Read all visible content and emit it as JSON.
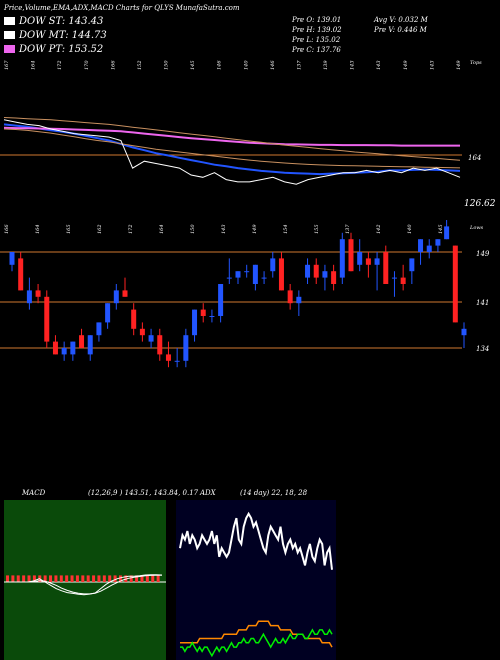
{
  "header": {
    "title": "Price,Volume,EMA,ADX,MACD Charts for QLYS MunafaSutra.com",
    "ohlc": [
      {
        "label": "Pre O: 139.01",
        "col": 0
      },
      {
        "label": "Pre H: 139.02",
        "col": 0
      },
      {
        "label": "Pre L: 135.02",
        "col": 0
      },
      {
        "label": "Pre C: 137.76",
        "col": 0
      },
      {
        "label": "Avg V: 0.032 M",
        "col": 1
      },
      {
        "label": "Pre V: 0.446 M",
        "col": 1
      }
    ]
  },
  "legend": [
    {
      "label": "DOW ST: 143.43",
      "color": "#ffffff"
    },
    {
      "label": "DOW MT: 144.73",
      "color": "#ffffff"
    },
    {
      "label": "DOW PT: 153.52",
      "color": "#ee66ee"
    }
  ],
  "chart_data": [
    {
      "type": "line",
      "name": "ema-panel",
      "top_tag": "Tops",
      "top_labels": [
        "167",
        "164",
        "172",
        "170",
        "166",
        "152",
        "150",
        "145",
        "146",
        "140",
        "146",
        "137",
        "139",
        "143",
        "143",
        "149",
        "143",
        "149"
      ],
      "price_tags": [
        "164",
        "126.62"
      ],
      "series": [
        {
          "color": "#2255ff",
          "values": [
            162,
            161.5,
            161,
            160.2,
            159.5,
            158.8,
            158,
            157,
            156,
            155,
            153.5,
            152,
            150.8,
            149.5,
            148.5,
            147.5,
            146.5,
            145.5,
            144.5,
            143.8,
            143,
            142.4,
            141.8,
            141.4,
            141,
            140.8,
            140.6,
            140.4,
            140.6,
            140.8,
            141,
            141.2,
            141.5,
            142,
            142,
            142.2,
            142.4,
            142.2,
            142,
            141.8
          ]
        },
        {
          "color": "#ee66ee",
          "values": [
            160.5,
            160.4,
            160.3,
            160.2,
            160.1,
            160,
            159.8,
            159.6,
            159.4,
            159.2,
            159,
            158.5,
            158,
            157.5,
            157,
            156.5,
            156,
            155.6,
            155.2,
            154.8,
            154.4,
            154,
            153.8,
            153.6,
            153.4,
            153.3,
            153.2,
            153.1,
            153.1,
            153,
            153,
            153,
            152.9,
            152.9,
            152.8,
            152.8,
            152.8,
            152.8,
            152.8,
            152.8
          ]
        },
        {
          "color": "#c89060",
          "values": [
            165,
            164.8,
            164.5,
            164.2,
            164,
            163.6,
            163.2,
            162.8,
            162.4,
            162,
            161.4,
            160.8,
            160.2,
            159.6,
            159,
            158.4,
            157.8,
            157.2,
            156.6,
            156,
            155.4,
            154.8,
            154.2,
            153.6,
            153,
            152.5,
            152,
            151.5,
            151,
            150.5,
            150,
            149.6,
            149.2,
            148.8,
            148.4,
            148,
            147.6,
            147.2,
            146.8,
            146.4
          ]
        },
        {
          "color": "#c89060",
          "values": [
            160,
            159.8,
            159.4,
            158.8,
            158.2,
            157.4,
            156.6,
            155.8,
            155,
            154.4,
            153.6,
            152.8,
            152,
            151.2,
            150.6,
            150,
            149.4,
            148.8,
            148.2,
            147.6,
            147,
            146.5,
            146,
            145.6,
            145.2,
            144.9,
            144.6,
            144.4,
            144.2,
            144.1,
            144,
            143.9,
            143.8,
            143.7,
            143.6,
            143.5,
            143.4,
            143.3,
            143.2,
            143.1
          ]
        },
        {
          "color": "#ffffff",
          "values": [
            164,
            163,
            162,
            161.5,
            160,
            159,
            158,
            157.5,
            157,
            156.5,
            155,
            143,
            146,
            145,
            144,
            143,
            140,
            139,
            141,
            138,
            137,
            137,
            138,
            139,
            137,
            136,
            138,
            139,
            140,
            141,
            141,
            142,
            141,
            142,
            141,
            143,
            142,
            143,
            141,
            139
          ]
        }
      ]
    },
    {
      "type": "candlestick",
      "name": "price-panel",
      "top_tag": "Lows",
      "top_labels": [
        "166",
        "164",
        "165",
        "162",
        "172",
        "164",
        "150",
        "143",
        "149",
        "154",
        "155",
        "137",
        "142",
        "140",
        "145"
      ],
      "price_tags": [
        "149",
        "141",
        "134"
      ],
      "ylim": [
        130,
        154
      ],
      "candles": [
        {
          "o": 147,
          "h": 149,
          "l": 146,
          "c": 149
        },
        {
          "o": 148,
          "h": 149,
          "l": 143,
          "c": 143
        },
        {
          "o": 141,
          "h": 145,
          "l": 140,
          "c": 143
        },
        {
          "o": 143,
          "h": 144,
          "l": 141,
          "c": 142
        },
        {
          "o": 142,
          "h": 143,
          "l": 134,
          "c": 135
        },
        {
          "o": 135,
          "h": 136,
          "l": 133,
          "c": 133
        },
        {
          "o": 133,
          "h": 135,
          "l": 132,
          "c": 134
        },
        {
          "o": 133,
          "h": 135,
          "l": 132,
          "c": 135
        },
        {
          "o": 136,
          "h": 137,
          "l": 134,
          "c": 134
        },
        {
          "o": 133,
          "h": 136,
          "l": 132,
          "c": 136
        },
        {
          "o": 136,
          "h": 138,
          "l": 135,
          "c": 138
        },
        {
          "o": 138,
          "h": 141,
          "l": 137,
          "c": 141
        },
        {
          "o": 141,
          "h": 144,
          "l": 140,
          "c": 143
        },
        {
          "o": 143,
          "h": 145,
          "l": 142,
          "c": 142
        },
        {
          "o": 140,
          "h": 141,
          "l": 136,
          "c": 137
        },
        {
          "o": 137,
          "h": 138,
          "l": 135,
          "c": 136
        },
        {
          "o": 135,
          "h": 137,
          "l": 134,
          "c": 136
        },
        {
          "o": 136,
          "h": 137,
          "l": 132,
          "c": 133
        },
        {
          "o": 133,
          "h": 135,
          "l": 131,
          "c": 132
        },
        {
          "o": 132,
          "h": 134,
          "l": 131,
          "c": 132
        },
        {
          "o": 132,
          "h": 137,
          "l": 131,
          "c": 136
        },
        {
          "o": 136,
          "h": 140,
          "l": 135,
          "c": 140
        },
        {
          "o": 140,
          "h": 141,
          "l": 138,
          "c": 139
        },
        {
          "o": 139,
          "h": 140,
          "l": 138,
          "c": 139
        },
        {
          "o": 139,
          "h": 144,
          "l": 138,
          "c": 144
        },
        {
          "o": 145,
          "h": 148,
          "l": 144,
          "c": 145
        },
        {
          "o": 145,
          "h": 146,
          "l": 144,
          "c": 146
        },
        {
          "o": 146,
          "h": 147,
          "l": 145,
          "c": 146
        },
        {
          "o": 144,
          "h": 147,
          "l": 143,
          "c": 147
        },
        {
          "o": 145,
          "h": 146,
          "l": 144,
          "c": 145
        },
        {
          "o": 146,
          "h": 149,
          "l": 145,
          "c": 148
        },
        {
          "o": 148,
          "h": 149,
          "l": 143,
          "c": 143
        },
        {
          "o": 143,
          "h": 144,
          "l": 140,
          "c": 141
        },
        {
          "o": 141,
          "h": 143,
          "l": 139,
          "c": 142
        },
        {
          "o": 145,
          "h": 148,
          "l": 144,
          "c": 147
        },
        {
          "o": 147,
          "h": 148,
          "l": 144,
          "c": 145
        },
        {
          "o": 145,
          "h": 147,
          "l": 143,
          "c": 146
        },
        {
          "o": 146,
          "h": 147,
          "l": 143,
          "c": 144
        },
        {
          "o": 145,
          "h": 152,
          "l": 144,
          "c": 151
        },
        {
          "o": 151,
          "h": 152,
          "l": 146,
          "c": 146
        },
        {
          "o": 147,
          "h": 151,
          "l": 146,
          "c": 149
        },
        {
          "o": 148,
          "h": 149,
          "l": 145,
          "c": 147
        },
        {
          "o": 147,
          "h": 149,
          "l": 143,
          "c": 148
        },
        {
          "o": 149,
          "h": 150,
          "l": 144,
          "c": 144
        },
        {
          "o": 145,
          "h": 146,
          "l": 142,
          "c": 145
        },
        {
          "o": 145,
          "h": 147,
          "l": 143,
          "c": 144
        },
        {
          "o": 146,
          "h": 148,
          "l": 144,
          "c": 148
        },
        {
          "o": 149,
          "h": 151,
          "l": 147,
          "c": 151
        },
        {
          "o": 149,
          "h": 151,
          "l": 148,
          "c": 150
        },
        {
          "o": 150,
          "h": 151,
          "l": 149,
          "c": 151
        },
        {
          "o": 151,
          "h": 154,
          "l": 151,
          "c": 153
        },
        {
          "o": 150,
          "h": 150,
          "l": 138,
          "c": 138
        },
        {
          "o": 136,
          "h": 138,
          "l": 134,
          "c": 137
        }
      ]
    },
    {
      "type": "bar",
      "name": "macd-panel",
      "title": "MACD",
      "params": "(12,26,9 ) 143.51, 143.84, 0.17",
      "series": [
        {
          "name": "macd-line",
          "color": "#ffffff",
          "values": [
            0,
            0,
            0,
            0,
            0,
            0.5,
            1.5,
            0,
            -1.5,
            -3,
            -4,
            -4.8,
            -5.2,
            -5.6,
            -5.8,
            -5.5,
            -5,
            -3,
            -1,
            0.5,
            1.5,
            2.2,
            2.6,
            2.6,
            2.8,
            3.2,
            3.3,
            3.3,
            3.2
          ]
        },
        {
          "name": "signal-line",
          "color": "#ffffff",
          "values": [
            0,
            0,
            0,
            0,
            0,
            0.2,
            0.6,
            0.4,
            -0.5,
            -1.5,
            -2.8,
            -3.8,
            -4.6,
            -5.1,
            -5.4,
            -5.4,
            -5.1,
            -4.2,
            -2.8,
            -1.4,
            -0.2,
            0.9,
            1.7,
            2.2,
            2.5,
            2.8,
            3,
            3.1,
            3.1
          ]
        },
        {
          "name": "histogram",
          "color": "#ff3333",
          "values": [
            3,
            3,
            3,
            3,
            3,
            3,
            3,
            3,
            3,
            3,
            3,
            3,
            3,
            3,
            3,
            3,
            3,
            3,
            3,
            3,
            3,
            3,
            3,
            3,
            3,
            3,
            3,
            3,
            3
          ]
        }
      ]
    },
    {
      "type": "line",
      "name": "adx-panel",
      "title": "ADX",
      "params": "(14 day) 22, 18, 28",
      "series": [
        {
          "name": "adx",
          "color": "#ffffff",
          "values": [
            26,
            29,
            28,
            30,
            27,
            29,
            28,
            26,
            27,
            29,
            28,
            27,
            28,
            30,
            27,
            29,
            24,
            26,
            25,
            24,
            25,
            28,
            31,
            33,
            28,
            27,
            31,
            33,
            34,
            33,
            31,
            32,
            30,
            28,
            26,
            25,
            29,
            31,
            30,
            29,
            28,
            31,
            27,
            25,
            27,
            28,
            26,
            27,
            25,
            26,
            24,
            22,
            25,
            27,
            24,
            23,
            26,
            28,
            27,
            22,
            25,
            26,
            21
          ]
        },
        {
          "name": "di-plus",
          "color": "#ff8800",
          "values": [
            4,
            4,
            4,
            4,
            4,
            4,
            4,
            4,
            5,
            5,
            5,
            5,
            5,
            5,
            5,
            5,
            5,
            5,
            6,
            6,
            6,
            6,
            6,
            6,
            7,
            7,
            7,
            7,
            8,
            8,
            8,
            8,
            9,
            9,
            9,
            9,
            9,
            8,
            8,
            8,
            8,
            7,
            7,
            7,
            7,
            7,
            6,
            6,
            6,
            6,
            6,
            5,
            5,
            5,
            5,
            5,
            5,
            5,
            4,
            4,
            4,
            4,
            3
          ]
        },
        {
          "name": "di-minus",
          "color": "#00ee00",
          "values": [
            3,
            3,
            2,
            3,
            3,
            4,
            3,
            2,
            3,
            2,
            3,
            3,
            2,
            1,
            2,
            3,
            2,
            3,
            3,
            2,
            3,
            4,
            3,
            3,
            4,
            4,
            5,
            4,
            4,
            5,
            5,
            4,
            4,
            5,
            6,
            5,
            4,
            3,
            4,
            5,
            4,
            4,
            5,
            4,
            5,
            6,
            5,
            5,
            6,
            6,
            6,
            5,
            5,
            6,
            7,
            6,
            6,
            7,
            7,
            6,
            6,
            7,
            6
          ]
        }
      ]
    }
  ]
}
